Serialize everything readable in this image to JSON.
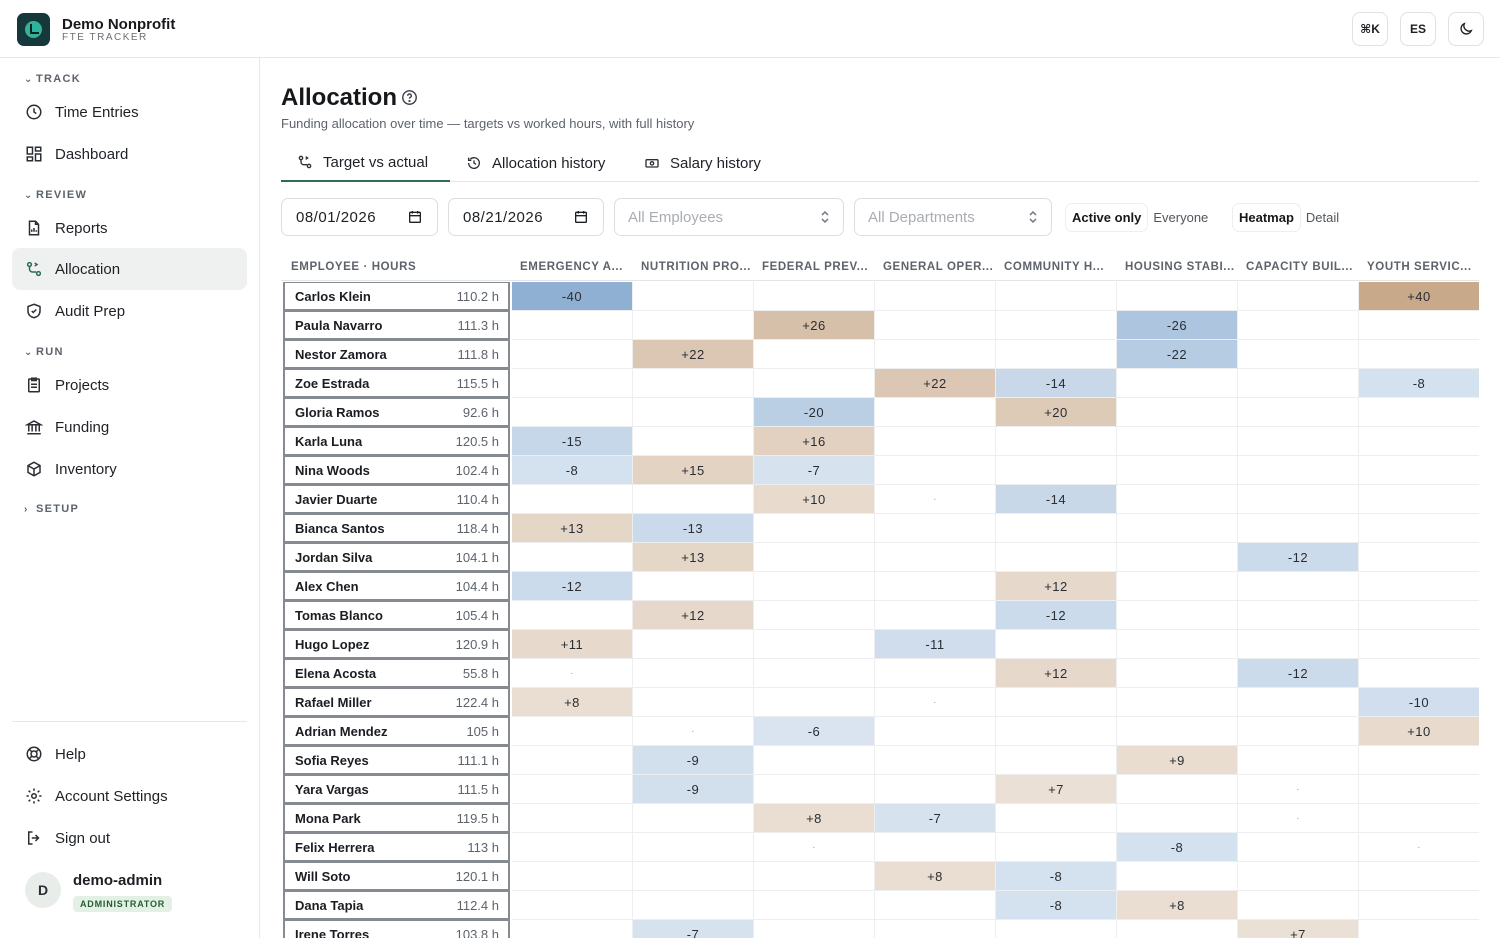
{
  "brand": {
    "name": "Demo Nonprofit",
    "subtitle": "FTE TRACKER"
  },
  "top_buttons": {
    "command": "⌘K",
    "language": "ES",
    "theme_icon": "moon-icon"
  },
  "sidebar": {
    "sections": {
      "track": "TRACK",
      "review": "REVIEW",
      "run": "RUN",
      "setup": "SETUP"
    },
    "items": {
      "time_entries": "Time Entries",
      "dashboard": "Dashboard",
      "reports": "Reports",
      "allocation": "Allocation",
      "audit_prep": "Audit Prep",
      "projects": "Projects",
      "funding": "Funding",
      "inventory": "Inventory",
      "help": "Help",
      "account_settings": "Account Settings",
      "sign_out": "Sign out"
    },
    "active": "allocation",
    "user": {
      "initial": "D",
      "name": "demo-admin",
      "role": "ADMINISTRATOR"
    }
  },
  "page": {
    "title": "Allocation",
    "subtitle": "Funding allocation over time — targets vs worked hours, with full history",
    "tabs": {
      "target_vs_actual": "Target vs actual",
      "allocation_history": "Allocation history",
      "salary_history": "Salary history"
    },
    "active_tab": "target_vs_actual"
  },
  "filters": {
    "start_date": "08/01/2026",
    "end_date": "08/21/2026",
    "employees_placeholder": "All Employees",
    "departments_placeholder": "All Departments",
    "scope": {
      "active_only": "Active only",
      "everyone": "Everyone",
      "selected": "active_only"
    },
    "view": {
      "heatmap": "Heatmap",
      "detail": "Detail",
      "selected": "heatmap"
    }
  },
  "colors": {
    "accent": "#2f6b57",
    "over_target": "#c8a98a",
    "under_target": "#8fb0d3"
  },
  "grid": {
    "employee_header": "EMPLOYEE · HOURS",
    "columns": [
      "EMERGENCY A...",
      "NUTRITION PRO...",
      "FEDERAL PREV...",
      "GENERAL OPER...",
      "COMMUNITY H...",
      "HOUSING STABI...",
      "CAPACITY BUIL...",
      "YOUTH SERVIC..."
    ],
    "rows": [
      {
        "name": "Carlos Klein",
        "hours": "110.2 h",
        "cells": [
          "-40",
          "",
          "",
          "",
          "",
          "",
          "",
          "+40"
        ]
      },
      {
        "name": "Paula Navarro",
        "hours": "111.3 h",
        "cells": [
          "",
          "",
          "+26",
          "",
          "",
          "-26",
          "",
          ""
        ]
      },
      {
        "name": "Nestor Zamora",
        "hours": "111.8 h",
        "cells": [
          "",
          "+22",
          "",
          "",
          "",
          "-22",
          "",
          ""
        ]
      },
      {
        "name": "Zoe Estrada",
        "hours": "115.5 h",
        "cells": [
          "",
          "",
          "",
          "+22",
          "-14",
          "",
          "",
          "-8"
        ]
      },
      {
        "name": "Gloria Ramos",
        "hours": "92.6 h",
        "cells": [
          "",
          "",
          "-20",
          "",
          "+20",
          "",
          "",
          ""
        ]
      },
      {
        "name": "Karla Luna",
        "hours": "120.5 h",
        "cells": [
          "-15",
          "",
          "+16",
          "",
          "",
          "",
          "",
          ""
        ]
      },
      {
        "name": "Nina Woods",
        "hours": "102.4 h",
        "cells": [
          "-8",
          "+15",
          "-7",
          "",
          "",
          "",
          "",
          ""
        ]
      },
      {
        "name": "Javier Duarte",
        "hours": "110.4 h",
        "cells": [
          "",
          "",
          "+10",
          "·",
          "-14",
          "",
          "",
          ""
        ]
      },
      {
        "name": "Bianca Santos",
        "hours": "118.4 h",
        "cells": [
          "+13",
          "-13",
          "",
          "",
          "",
          "",
          "",
          ""
        ]
      },
      {
        "name": "Jordan Silva",
        "hours": "104.1 h",
        "cells": [
          "",
          "+13",
          "",
          "",
          "",
          "",
          "-12",
          ""
        ]
      },
      {
        "name": "Alex Chen",
        "hours": "104.4 h",
        "cells": [
          "-12",
          "",
          "",
          "",
          "+12",
          "",
          "",
          ""
        ]
      },
      {
        "name": "Tomas Blanco",
        "hours": "105.4 h",
        "cells": [
          "",
          "+12",
          "",
          "",
          "-12",
          "",
          "",
          ""
        ]
      },
      {
        "name": "Hugo Lopez",
        "hours": "120.9 h",
        "cells": [
          "+11",
          "",
          "",
          "-11",
          "",
          "",
          "",
          ""
        ]
      },
      {
        "name": "Elena Acosta",
        "hours": "55.8 h",
        "cells": [
          "·",
          "",
          "",
          "",
          "+12",
          "",
          "-12",
          ""
        ]
      },
      {
        "name": "Rafael Miller",
        "hours": "122.4 h",
        "cells": [
          "+8",
          "",
          "",
          "·",
          "",
          "",
          "",
          "-10"
        ]
      },
      {
        "name": "Adrian Mendez",
        "hours": "105 h",
        "cells": [
          "",
          "·",
          "-6",
          "",
          "",
          "",
          "",
          "+10"
        ]
      },
      {
        "name": "Sofia Reyes",
        "hours": "111.1 h",
        "cells": [
          "",
          "-9",
          "",
          "",
          "",
          "+9",
          "",
          ""
        ]
      },
      {
        "name": "Yara Vargas",
        "hours": "111.5 h",
        "cells": [
          "",
          "-9",
          "",
          "",
          "+7",
          "",
          "·",
          ""
        ]
      },
      {
        "name": "Mona Park",
        "hours": "119.5 h",
        "cells": [
          "",
          "",
          "+8",
          "-7",
          "",
          "",
          "·",
          ""
        ]
      },
      {
        "name": "Felix Herrera",
        "hours": "113 h",
        "cells": [
          "",
          "",
          "·",
          "",
          "",
          "-8",
          "",
          "·"
        ]
      },
      {
        "name": "Will Soto",
        "hours": "120.1 h",
        "cells": [
          "",
          "",
          "",
          "+8",
          "-8",
          "",
          "",
          ""
        ]
      },
      {
        "name": "Dana Tapia",
        "hours": "112.4 h",
        "cells": [
          "",
          "",
          "",
          "",
          "-8",
          "+8",
          "",
          ""
        ]
      },
      {
        "name": "Irene Torres",
        "hours": "103.8 h",
        "cells": [
          "",
          "-7",
          "",
          "",
          "",
          "",
          "+7",
          ""
        ]
      }
    ]
  }
}
